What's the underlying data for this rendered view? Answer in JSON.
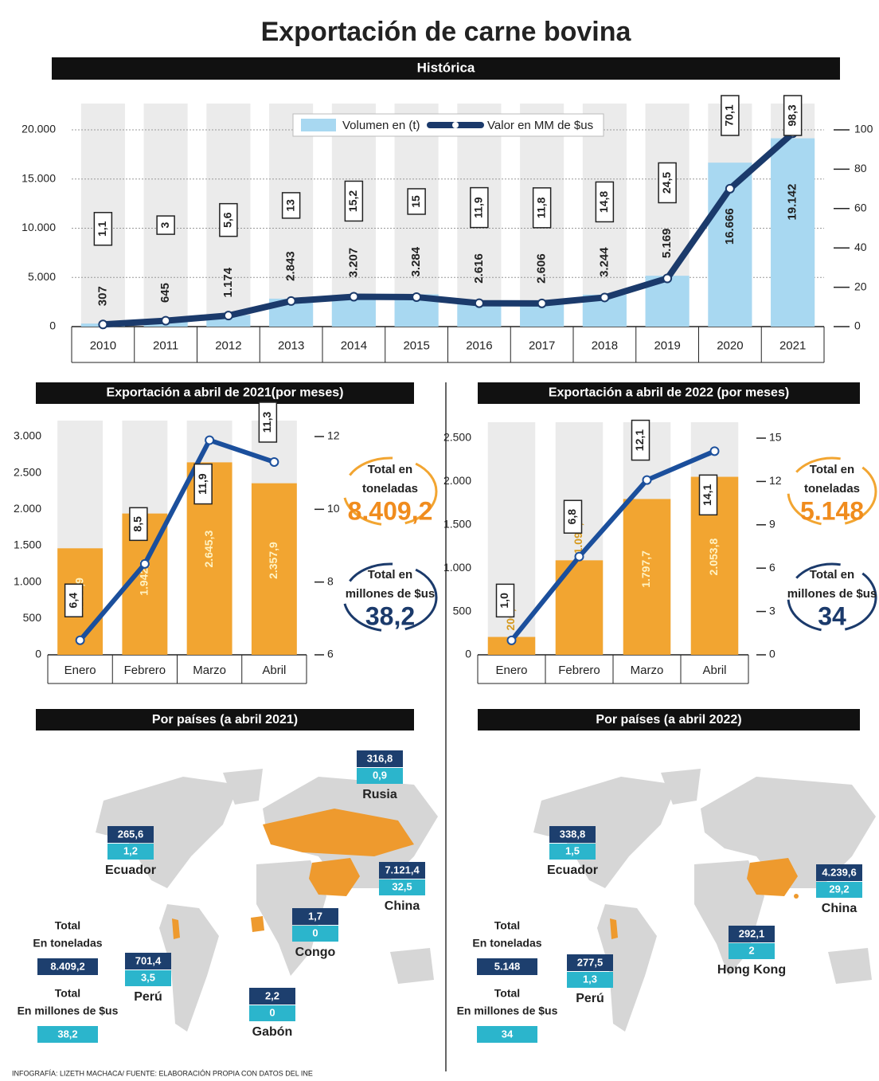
{
  "chart_data": [
    {
      "type": "combo",
      "title": "Exportación de carne bovina",
      "subtitle": "Histórica",
      "categories": [
        "2010",
        "2011",
        "2012",
        "2013",
        "2014",
        "2015",
        "2016",
        "2017",
        "2018",
        "2019",
        "2020",
        "2021"
      ],
      "series": [
        {
          "name": "Volumen en (t)",
          "type": "bar",
          "color": "#a8d8f1",
          "values": [
            307,
            645,
            1174,
            2843,
            3207,
            3284,
            2616,
            2606,
            3244,
            5169,
            16666,
            19142
          ],
          "value_labels": [
            "307",
            "645",
            "1.174",
            "2.843",
            "3.207",
            "3.284",
            "2.616",
            "2.606",
            "3.244",
            "5.169",
            "16.666",
            "19.142"
          ]
        },
        {
          "name": "Valor en MM de $us",
          "type": "line",
          "axis": "y2",
          "color": "#1b3a6b",
          "values": [
            1.1,
            3,
            5.6,
            13,
            15.2,
            15,
            11.9,
            11.8,
            14.8,
            24.5,
            70.1,
            98.3
          ],
          "value_labels": [
            "1,1",
            "3",
            "5,6",
            "13",
            "15,2",
            "15",
            "11,9",
            "11,8",
            "14,8",
            "24,5",
            "70,1",
            "98,3"
          ]
        }
      ],
      "ylim": [
        0,
        20000
      ],
      "yticks": [
        0,
        {
          "value": 5000,
          "label": "5.000"
        },
        {
          "value": 10000,
          "label": "10.000"
        },
        {
          "value": 15000,
          "label": "15.000"
        },
        {
          "value": 20000,
          "label": "20.000"
        }
      ],
      "y2lim": [
        0,
        100
      ],
      "y2ticks": [
        0,
        20,
        40,
        60,
        80,
        100
      ],
      "grid": true,
      "legend": "top"
    },
    {
      "type": "combo",
      "title": "Exportación a abril de 2021(por meses)",
      "categories": [
        "Enero",
        "Febrero",
        "Marzo",
        "Abril"
      ],
      "series": [
        {
          "type": "bar",
          "color": "#f2a531",
          "values": [
            1463.9,
            1942.1,
            2645.3,
            2357.9
          ],
          "value_labels": [
            "1.463,9",
            "1.942,1",
            "2.645,3",
            "2.357,9"
          ]
        },
        {
          "type": "line",
          "axis": "y2",
          "color": "#1b4f9c",
          "values": [
            6.4,
            8.5,
            11.9,
            11.3
          ],
          "value_labels": [
            "6,4",
            "8,5",
            "11,9",
            "11,3"
          ]
        }
      ],
      "ylim": [
        0,
        3000
      ],
      "yticks": [
        0,
        500,
        {
          "value": 1000,
          "label": "1.000"
        },
        {
          "value": 1500,
          "label": "1.500"
        },
        {
          "value": 2000,
          "label": "2.000"
        },
        {
          "value": 2500,
          "label": "2.500"
        },
        {
          "value": 3000,
          "label": "3.000"
        }
      ],
      "y2lim": [
        6,
        12
      ],
      "y2ticks": [
        6,
        8,
        10,
        12
      ],
      "grid": false,
      "totals": [
        {
          "lines": [
            "Total en",
            "toneladas"
          ],
          "value": "8.409,2"
        },
        {
          "lines": [
            "Total en",
            "millones de $us"
          ],
          "value": "38,2"
        }
      ]
    },
    {
      "type": "combo",
      "title": "Exportación a abril de 2022 (por meses)",
      "categories": [
        "Enero",
        "Febrero",
        "Marzo",
        "Abril"
      ],
      "series": [
        {
          "type": "bar",
          "color": "#f2a531",
          "values": [
            206.2,
            1090.3,
            1797.7,
            2053.8
          ],
          "value_labels": [
            "206,2",
            "1.090,3",
            "1.797,7",
            "2.053,8"
          ]
        },
        {
          "type": "line",
          "axis": "y2",
          "color": "#1b4f9c",
          "values": [
            1.0,
            6.8,
            12.1,
            14.1
          ],
          "value_labels": [
            "1,0",
            "6,8",
            "12,1",
            "14,1"
          ]
        }
      ],
      "ylim": [
        0,
        2500
      ],
      "yticks": [
        0,
        500,
        {
          "value": 1000,
          "label": "1.000"
        },
        {
          "value": 1500,
          "label": "1.500"
        },
        {
          "value": 2000,
          "label": "2.000"
        },
        {
          "value": 2500,
          "label": "2.500"
        }
      ],
      "y2lim": [
        0,
        15
      ],
      "y2ticks": [
        0,
        3,
        6,
        9,
        12,
        15
      ],
      "grid": false,
      "totals": [
        {
          "lines": [
            "Total en",
            "toneladas"
          ],
          "value": "5.148"
        },
        {
          "lines": [
            "Total en",
            "millones de $us"
          ],
          "value": "34"
        }
      ]
    }
  ],
  "maps": [
    {
      "title": "Por países (a abril 2021)",
      "countries": [
        {
          "name": "Rusia",
          "tons": "316,8",
          "usd": "0,9"
        },
        {
          "name": "Ecuador",
          "tons": "265,6",
          "usd": "1,2"
        },
        {
          "name": "China",
          "tons": "7.121,4",
          "usd": "32,5"
        },
        {
          "name": "Congo",
          "tons": "1,7",
          "usd": "0"
        },
        {
          "name": "Perú",
          "tons": "701,4",
          "usd": "3,5"
        },
        {
          "name": "Gabón",
          "tons": "2,2",
          "usd": "0"
        }
      ],
      "totals": [
        {
          "lines": [
            "Total",
            "En toneladas"
          ],
          "value": "8.409,2"
        },
        {
          "lines": [
            "Total",
            "En millones de $us"
          ],
          "value": "38,2"
        }
      ]
    },
    {
      "title": "Por países (a abril 2022)",
      "countries": [
        {
          "name": "Ecuador",
          "tons": "338,8",
          "usd": "1,5"
        },
        {
          "name": "China",
          "tons": "4.239,6",
          "usd": "29,2"
        },
        {
          "name": "Hong Kong",
          "tons": "292,1",
          "usd": "2"
        },
        {
          "name": "Perú",
          "tons": "277,5",
          "usd": "1,3"
        }
      ],
      "totals": [
        {
          "lines": [
            "Total",
            "En toneladas"
          ],
          "value": "5.148"
        },
        {
          "lines": [
            "Total",
            "En millones de $us"
          ],
          "value": "34"
        }
      ]
    }
  ],
  "footer": "INFOGRAFÍA: LIZETH MACHACA/ FUENTE: ELABORACIÓN PROPIA CON DATOS DEL INE"
}
